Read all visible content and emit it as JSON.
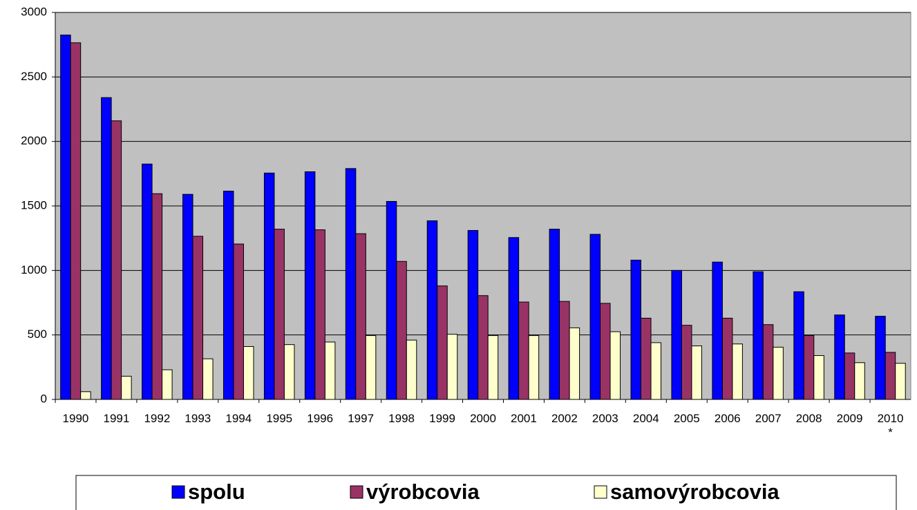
{
  "chart_data": {
    "type": "bar",
    "categories": [
      "1990",
      "1991",
      "1992",
      "1993",
      "1994",
      "1995",
      "1996",
      "1997",
      "1998",
      "1999",
      "2000",
      "2001",
      "2002",
      "2003",
      "2004",
      "2005",
      "2006",
      "2007",
      "2008",
      "2009",
      "2010\n*"
    ],
    "series": [
      {
        "name": "spolu",
        "color": "#0000ff",
        "values": [
          2825,
          2340,
          1825,
          1590,
          1615,
          1755,
          1765,
          1790,
          1535,
          1385,
          1310,
          1255,
          1320,
          1280,
          1080,
          1000,
          1065,
          990,
          835,
          655,
          645
        ]
      },
      {
        "name": "výrobcovia",
        "color": "#993366",
        "values": [
          2765,
          2160,
          1595,
          1265,
          1205,
          1320,
          1315,
          1285,
          1070,
          880,
          805,
          755,
          760,
          745,
          630,
          575,
          630,
          580,
          495,
          360,
          365
        ]
      },
      {
        "name": "samovýrobcovia",
        "color": "#ffffcc",
        "values": [
          60,
          180,
          230,
          315,
          410,
          425,
          445,
          495,
          460,
          505,
          495,
          495,
          555,
          525,
          440,
          415,
          430,
          405,
          340,
          285,
          280
        ]
      }
    ],
    "ylim": [
      0,
      3000
    ],
    "yticks": [
      0,
      500,
      1000,
      1500,
      2000,
      2500,
      3000
    ],
    "grid": true,
    "plot_background": "#c0c0c0",
    "legend": "bottom"
  }
}
